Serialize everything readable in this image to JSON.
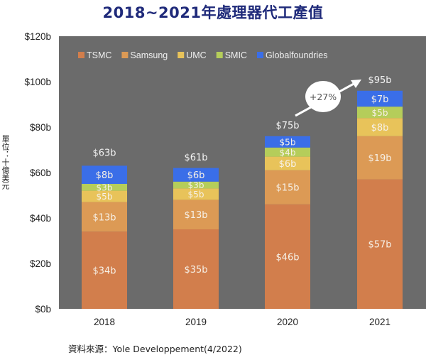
{
  "title": "2018~2021年處理器代工產值",
  "unit_label": "單位：十億美元",
  "source": "資料來源：Yole Developpement(4/2022)",
  "chart_data": {
    "type": "bar",
    "stacked": true,
    "title": "2018~2021年處理器代工產值",
    "xlabel": "",
    "ylabel": "單位：十億美元",
    "categories": [
      "2018",
      "2019",
      "2020",
      "2021"
    ],
    "ylim": [
      0,
      120
    ],
    "yticks": [
      0,
      20,
      40,
      60,
      80,
      100,
      120
    ],
    "ytick_labels": [
      "$0b",
      "$20b",
      "$40b",
      "$60b",
      "$80b",
      "$100b",
      "$120b"
    ],
    "grid": false,
    "legend_position": "top-left",
    "background": "#6b6b6b",
    "series": [
      {
        "name": "TSMC",
        "color": "#d27e4c",
        "values": [
          34,
          35,
          46,
          57
        ],
        "labels": [
          "$34b",
          "$35b",
          "$46b",
          "$57b"
        ]
      },
      {
        "name": "Samsung",
        "color": "#dc9a55",
        "values": [
          13,
          13,
          15,
          19
        ],
        "labels": [
          "$13b",
          "$13b",
          "$15b",
          "$19b"
        ]
      },
      {
        "name": "UMC",
        "color": "#e8c35a",
        "values": [
          5,
          5,
          6,
          8
        ],
        "labels": [
          "$5b",
          "$5b",
          "$6b",
          "$8b"
        ]
      },
      {
        "name": "SMIC",
        "color": "#b5cd5a",
        "values": [
          3,
          3,
          4,
          5
        ],
        "labels": [
          "$3b",
          "$3b",
          "$4b",
          "$5b"
        ]
      },
      {
        "name": "Globalfoundries",
        "color": "#3a6ee8",
        "values": [
          8,
          6,
          5,
          7
        ],
        "labels": [
          "$8b",
          "$6b",
          "$5b",
          "$7b"
        ]
      }
    ],
    "totals": [
      63,
      61,
      75,
      95
    ],
    "total_labels": [
      "$63b",
      "$61b",
      "$75b",
      "$95b"
    ],
    "annotations": [
      {
        "text": "+27%",
        "type": "growth-arrow",
        "from": "2020",
        "to": "2021"
      }
    ]
  }
}
